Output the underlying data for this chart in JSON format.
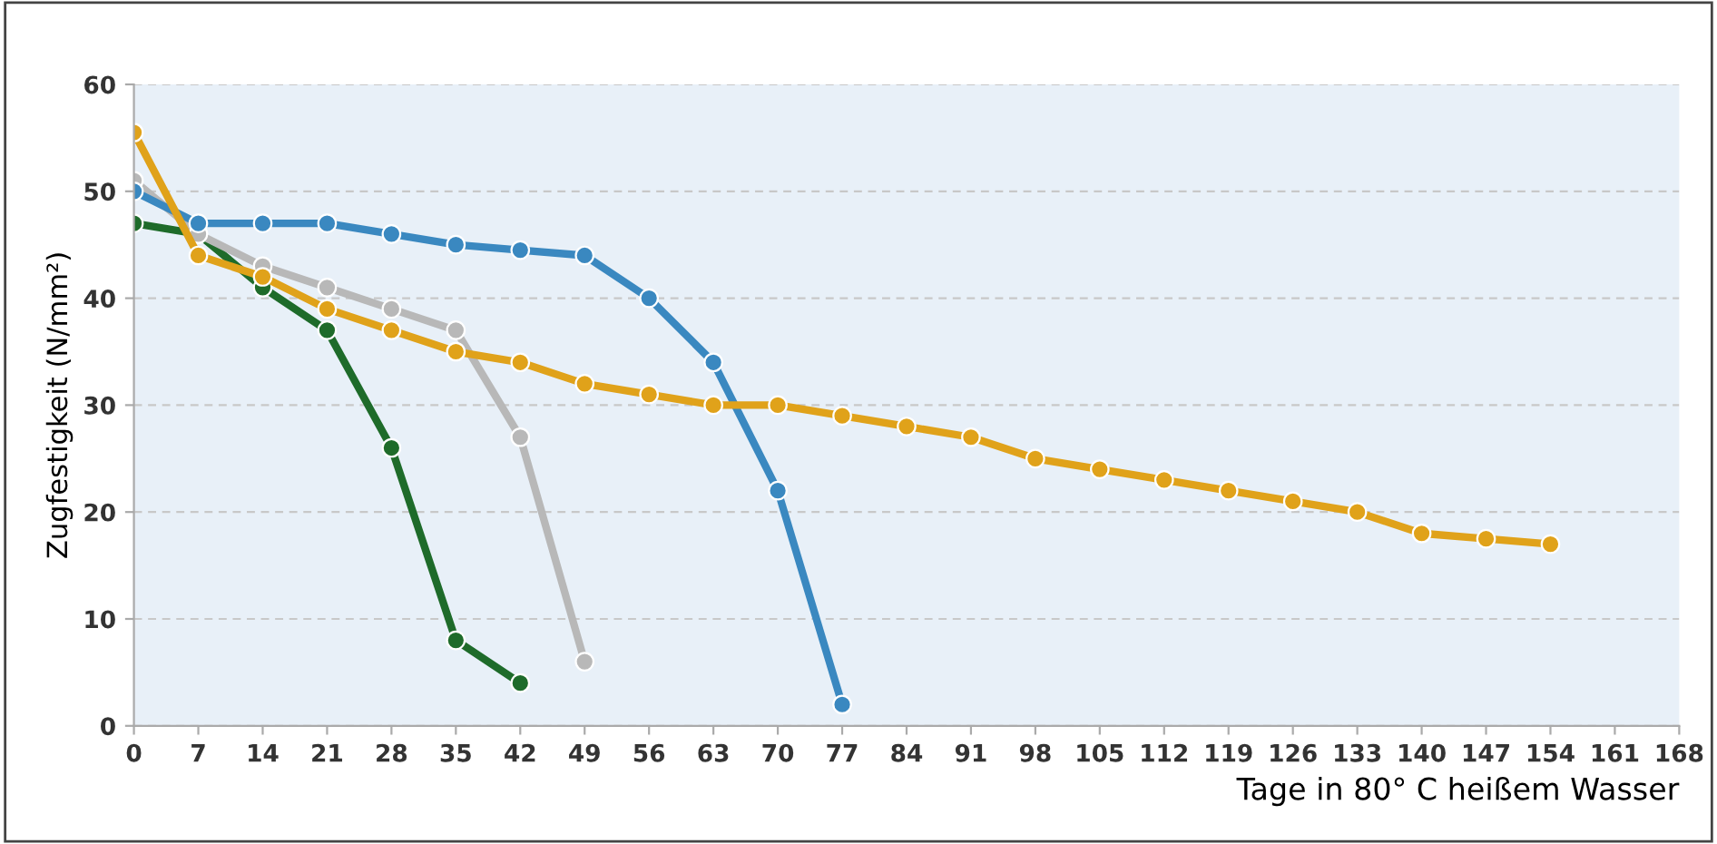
{
  "chart_data": {
    "type": "line",
    "xlabel": "Tage in 80° C heißem Wasser",
    "ylabel": "Zugfestigkeit (N/mm²)",
    "xlim": [
      0,
      168
    ],
    "xticks": [
      0,
      7,
      14,
      21,
      28,
      35,
      42,
      49,
      56,
      63,
      70,
      77,
      84,
      91,
      98,
      105,
      112,
      119,
      126,
      133,
      140,
      147,
      154,
      161,
      168
    ],
    "ylim": [
      0,
      60
    ],
    "yticks": [
      0,
      10,
      20,
      30,
      40,
      50,
      60
    ],
    "grid": "y",
    "legend": false,
    "marker": "circle",
    "line_style": "solid",
    "series": [
      {
        "color": "#1e6b2a",
        "x": [
          0,
          7,
          14,
          21,
          28,
          35,
          42
        ],
        "values": [
          47,
          46,
          41,
          37,
          26,
          8,
          4
        ]
      },
      {
        "color": "#b8b8b8",
        "x": [
          0,
          7,
          14,
          21,
          28,
          35,
          42,
          49
        ],
        "values": [
          51,
          46,
          43,
          41,
          39,
          37,
          27,
          6
        ]
      },
      {
        "color": "#3a88c0",
        "x": [
          0,
          7,
          14,
          21,
          28,
          35,
          42,
          49,
          56,
          63,
          70,
          77
        ],
        "values": [
          50,
          47,
          47,
          47,
          46,
          45,
          44.5,
          44,
          40,
          34,
          22,
          2
        ]
      },
      {
        "color": "#e0a21a",
        "x": [
          0,
          7,
          14,
          21,
          28,
          35,
          42,
          49,
          56,
          63,
          70,
          77,
          84,
          91,
          98,
          105,
          112,
          119,
          126,
          133,
          140,
          147,
          154
        ],
        "values": [
          55.5,
          44,
          42,
          39,
          37,
          35,
          34,
          32,
          31,
          30,
          30,
          29,
          28,
          27,
          25,
          24,
          23,
          22,
          21,
          20,
          18,
          17.5,
          17
        ]
      }
    ]
  }
}
